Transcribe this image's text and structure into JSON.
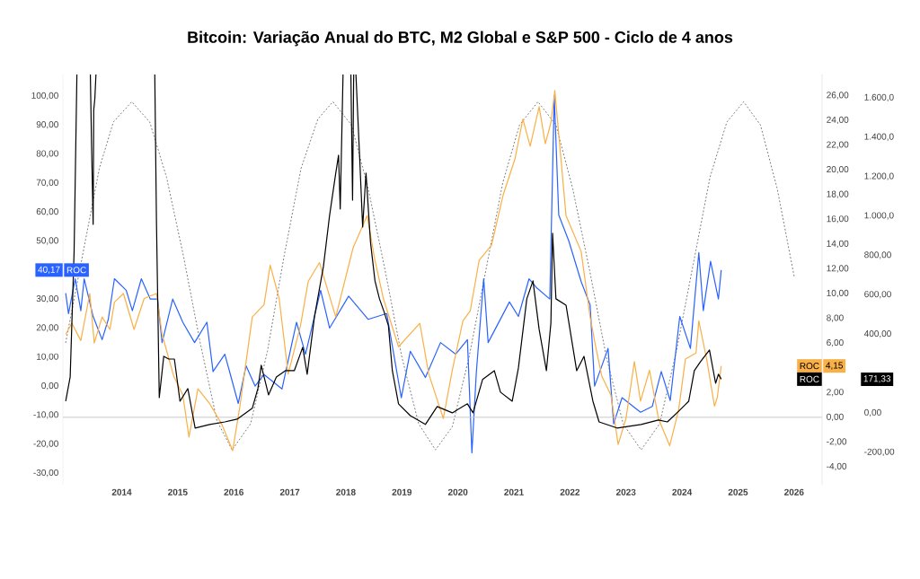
{
  "chart_data": {
    "type": "line",
    "title": "Bitcoin: Variação Anual do BTC, M2 Global e S&P 500 - Ciclo de 4 anos",
    "annotations": [
      "40,17",
      "4,15",
      "171,33"
    ],
    "xlim": [
      2012.95,
      2026.5
    ],
    "xticks": [
      2014,
      2015,
      2016,
      2017,
      2018,
      2019,
      2020,
      2021,
      2022,
      2023,
      2024,
      2025,
      2026
    ],
    "ylim": [
      -34,
      107.4
    ],
    "yticks": [
      {
        "value": 100,
        "label": "100,00"
      },
      {
        "value": 90,
        "label": "90,00"
      },
      {
        "value": 80,
        "label": "80,00"
      },
      {
        "value": 70,
        "label": "70,00"
      },
      {
        "value": 60,
        "label": "60,00"
      },
      {
        "value": 50,
        "label": "50,00"
      },
      {
        "value": 30,
        "label": "30,00"
      },
      {
        "value": 20,
        "label": "20,00"
      },
      {
        "value": 10,
        "label": "10,00"
      },
      {
        "value": 0,
        "label": "0,00"
      },
      {
        "value": -10,
        "label": "-10,00"
      },
      {
        "value": -20,
        "label": "-20,00"
      },
      {
        "value": -30,
        "label": "-30,00"
      }
    ],
    "y2lim": [
      -5.45,
      27.7
    ],
    "y2ticks": [
      {
        "value": 26,
        "label": "26,00"
      },
      {
        "value": 24,
        "label": "24,00"
      },
      {
        "value": 22,
        "label": "22,00"
      },
      {
        "value": 20,
        "label": "20,00"
      },
      {
        "value": 18,
        "label": "18,00"
      },
      {
        "value": 16,
        "label": "16,00"
      },
      {
        "value": 14,
        "label": "14,00"
      },
      {
        "value": 12,
        "label": "12,00"
      },
      {
        "value": 10,
        "label": "10,00"
      },
      {
        "value": 8,
        "label": "8,00"
      },
      {
        "value": 6,
        "label": "6,00"
      },
      {
        "value": 2,
        "label": "2,00"
      },
      {
        "value": 0,
        "label": "0,00"
      },
      {
        "value": -2,
        "label": "-2,00"
      },
      {
        "value": -4,
        "label": "-4,00"
      }
    ],
    "y3lim": [
      -365,
      1718
    ],
    "y3ticks": [
      {
        "value": 1600,
        "label": "1.600,0"
      },
      {
        "value": 1400,
        "label": "1.400,0"
      },
      {
        "value": 1200,
        "label": "1.200,0"
      },
      {
        "value": 1000,
        "label": "1.000,0"
      },
      {
        "value": 800,
        "label": "800,00"
      },
      {
        "value": 600,
        "label": "600,00"
      },
      {
        "value": 400,
        "label": "400,00"
      },
      {
        "value": 0,
        "label": "0,00"
      },
      {
        "value": -200,
        "label": "-200,00"
      }
    ],
    "ref_lines": [
      {
        "axis": "y2",
        "value": 0,
        "label": null,
        "color": "#c8c8c8"
      }
    ],
    "series": [
      {
        "name": "ROC",
        "color": "#2962ff",
        "axis": "y",
        "x": [
          2013.0,
          2013.05,
          2013.17,
          2013.27,
          2013.33,
          2013.49,
          2013.65,
          2013.76,
          2013.87,
          2014.08,
          2014.19,
          2014.35,
          2014.51,
          2014.64,
          2014.72,
          2014.91,
          2015.09,
          2015.3,
          2015.52,
          2015.63,
          2015.84,
          2016.08,
          2016.22,
          2016.38,
          2016.54,
          2016.86,
          2017.12,
          2017.28,
          2017.55,
          2017.71,
          2018.05,
          2018.4,
          2018.73,
          2018.99,
          2019.15,
          2019.42,
          2019.69,
          2019.96,
          2020.17,
          2020.25,
          2020.33,
          2020.46,
          2020.54,
          2020.92,
          2021.08,
          2021.27,
          2021.4,
          2021.64,
          2021.72,
          2021.8,
          2021.98,
          2022.2,
          2022.36,
          2022.44,
          2022.68,
          2022.78,
          2022.93,
          2023.26,
          2023.47,
          2023.63,
          2023.79,
          2023.96,
          2024.15,
          2024.3,
          2024.38,
          2024.51,
          2024.65,
          2024.7
        ],
        "values": [
          32,
          25,
          37,
          26,
          37,
          24,
          16,
          23,
          37,
          33,
          26,
          37,
          30,
          30,
          15,
          30,
          22,
          15,
          22,
          5,
          11,
          -6,
          7,
          0,
          4,
          -1,
          22,
          11,
          33,
          20,
          31,
          23,
          25,
          -4,
          12,
          3,
          15,
          11,
          16,
          -23,
          5,
          37,
          15,
          29,
          24,
          37,
          34,
          30,
          100,
          59,
          50,
          36,
          28,
          0,
          13,
          -13,
          -4,
          -9,
          -7,
          5,
          -5,
          24,
          13,
          46,
          26,
          43,
          30,
          40
        ]
      },
      {
        "name": "ROC",
        "color": "#f9b046",
        "axis": "y2",
        "x": [
          2013.0,
          2013.11,
          2013.27,
          2013.43,
          2013.51,
          2013.65,
          2013.79,
          2013.87,
          2014.03,
          2014.22,
          2014.4,
          2014.62,
          2014.72,
          2014.93,
          2015.09,
          2015.2,
          2015.36,
          2015.57,
          2015.79,
          2015.98,
          2016.11,
          2016.33,
          2016.54,
          2016.65,
          2016.81,
          2016.97,
          2017.19,
          2017.33,
          2017.53,
          2017.82,
          2018.13,
          2018.38,
          2018.51,
          2018.67,
          2018.94,
          2019.32,
          2019.48,
          2019.74,
          2019.9,
          2020.09,
          2020.22,
          2020.38,
          2020.6,
          2020.81,
          2021.02,
          2021.16,
          2021.29,
          2021.45,
          2021.56,
          2021.66,
          2021.73,
          2021.93,
          2022.2,
          2022.36,
          2022.46,
          2022.57,
          2022.73,
          2022.86,
          2023.0,
          2023.15,
          2023.26,
          2023.42,
          2023.58,
          2023.78,
          2023.94,
          2024.06,
          2024.25,
          2024.3,
          2024.44,
          2024.58,
          2024.63,
          2024.7
        ],
        "values": [
          6.7,
          7.6,
          6.2,
          10,
          6,
          8.1,
          7.1,
          9.3,
          10,
          7.1,
          9.6,
          10,
          6.7,
          3.3,
          1.8,
          -1.6,
          2.3,
          1.1,
          -0.6,
          -2.7,
          0.9,
          8.1,
          9.1,
          12.3,
          9.6,
          3.5,
          7.4,
          11,
          12.5,
          8.1,
          13.7,
          16.3,
          12.9,
          9.6,
          5.7,
          7.6,
          3.5,
          -0.1,
          3.8,
          7.8,
          8.6,
          12.7,
          13.9,
          18,
          20.9,
          24.1,
          21.9,
          25.1,
          22.1,
          23.8,
          26.4,
          16.3,
          13.4,
          8.1,
          5.7,
          3.3,
          1.8,
          -2.2,
          -0.1,
          4.5,
          1.3,
          3.8,
          -0.1,
          -2.3,
          0.6,
          4.7,
          5.2,
          7.8,
          4.7,
          0.9,
          1.6,
          4.15
        ]
      },
      {
        "name": "ROC",
        "color": "#000000",
        "axis": "y3",
        "x": [
          2013.0,
          2013.08,
          2013.15,
          2013.2,
          2013.3,
          2013.44,
          2013.46,
          2013.49,
          2013.5,
          2013.52,
          2013.54,
          2014.0,
          2014.59,
          2014.62,
          2014.67,
          2014.75,
          2014.84,
          2014.94,
          2015.04,
          2015.18,
          2015.31,
          2015.57,
          2015.84,
          2016.06,
          2016.33,
          2016.43,
          2016.49,
          2016.62,
          2016.76,
          2016.92,
          2017.08,
          2017.23,
          2017.31,
          2017.44,
          2017.6,
          2017.71,
          2017.82,
          2017.87,
          2017.9,
          2017.95,
          2018.0,
          2018.09,
          2018.12,
          2018.14,
          2018.16,
          2018.18,
          2018.25,
          2018.3,
          2018.36,
          2018.44,
          2018.52,
          2018.6,
          2018.68,
          2018.76,
          2018.83,
          2018.94,
          2019.15,
          2019.42,
          2019.63,
          2019.9,
          2020.17,
          2020.27,
          2020.44,
          2020.65,
          2020.76,
          2020.97,
          2021.08,
          2021.23,
          2021.34,
          2021.45,
          2021.58,
          2021.66,
          2021.69,
          2021.75,
          2021.93,
          2022.12,
          2022.25,
          2022.41,
          2022.52,
          2022.84,
          2023.27,
          2023.58,
          2023.74,
          2023.96,
          2024.12,
          2024.22,
          2024.33,
          2024.49,
          2024.6,
          2024.65,
          2024.7
        ],
        "values": [
          59,
          182,
          820,
          1718,
          null,
          1718,
          1381,
          957,
          1536,
          1595,
          1718,
          null,
          1718,
          971,
          77,
          287,
          273,
          273,
          59,
          123,
          -77,
          -59,
          -46,
          -32,
          23,
          123,
          242,
          91,
          182,
          214,
          214,
          333,
          196,
          488,
          743,
          1003,
          1217,
          1308,
          1035,
          1718,
          null,
          1718,
          1080,
          1718,
          null,
          1718,
          1276,
          943,
          1217,
          866,
          670,
          579,
          515,
          442,
          214,
          46,
          -14,
          -59,
          32,
          0,
          46,
          0,
          169,
          214,
          105,
          59,
          228,
          579,
          670,
          424,
          214,
          456,
          912,
          579,
          547,
          214,
          287,
          59,
          -46,
          -77,
          -59,
          -36,
          -46,
          14,
          59,
          214,
          260,
          319,
          150,
          196,
          171
        ]
      },
      {
        "color": "#555555",
        "axis": "y",
        "line_style": "dotted",
        "x": [
          2013.0,
          2013.3,
          2013.6,
          2013.85,
          2014.18,
          2014.5,
          2014.8,
          2015.1,
          2015.4,
          2015.7,
          2015.97,
          2016.3,
          2016.6,
          2016.9,
          2017.2,
          2017.5,
          2017.77,
          2018.1,
          2018.4,
          2018.7,
          2019.0,
          2019.3,
          2019.6,
          2019.9,
          2020.2,
          2020.5,
          2020.8,
          2021.1,
          2021.43,
          2021.75,
          2022.05,
          2022.35,
          2022.65,
          2022.95,
          2023.27,
          2023.6,
          2023.9,
          2024.2,
          2024.5,
          2024.8,
          2025.1,
          2025.4,
          2025.7,
          2026.0
        ],
        "values": [
          15,
          45,
          75,
          91,
          98,
          91,
          72,
          45,
          15,
          -12,
          -22,
          -13,
          12,
          45,
          75,
          92,
          98,
          90,
          68,
          40,
          10,
          -13,
          -22,
          -14,
          10,
          40,
          70,
          90,
          98,
          90,
          68,
          40,
          10,
          -13,
          -22,
          -13,
          12,
          42,
          72,
          91,
          98,
          90,
          68,
          38
        ]
      }
    ]
  }
}
